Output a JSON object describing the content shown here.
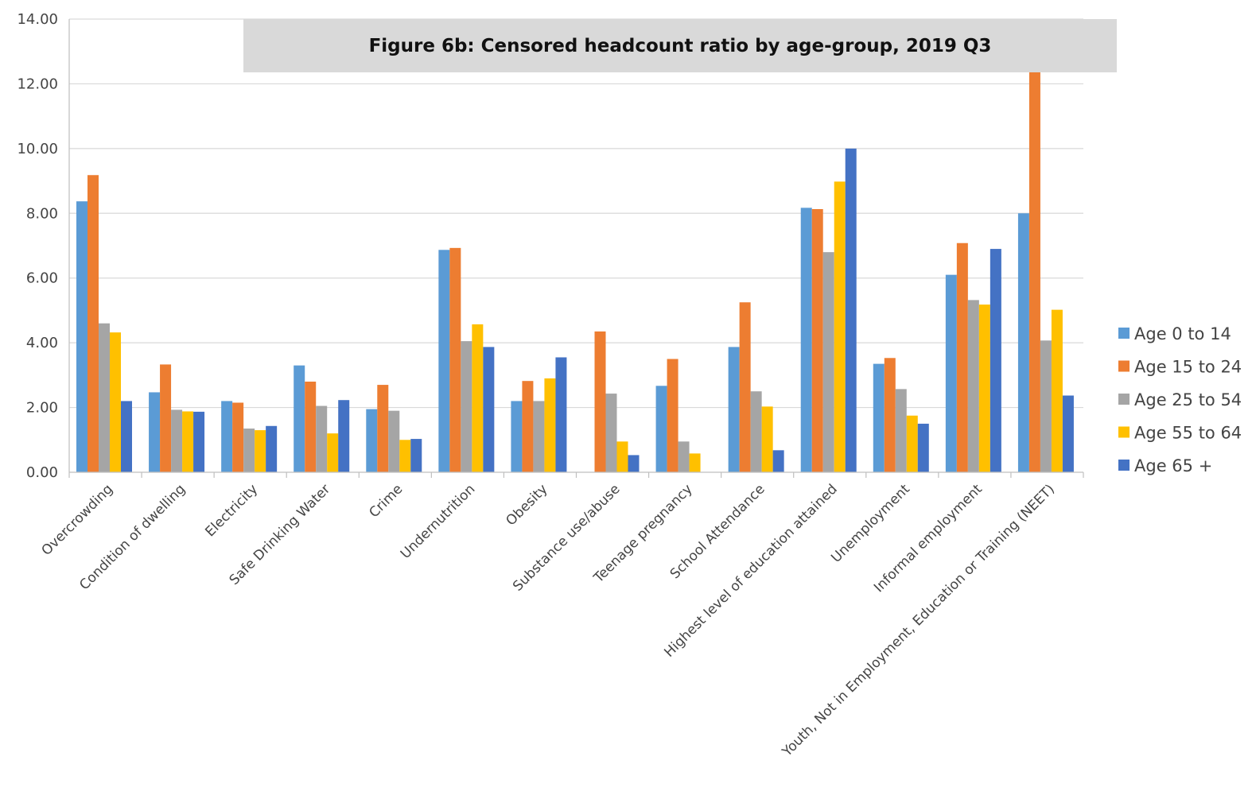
{
  "chart_data": {
    "type": "bar",
    "title": "Figure 6b: Censored headcount ratio by age-group, 2019 Q3",
    "xlabel": "",
    "ylabel": "",
    "ylim": [
      0,
      14
    ],
    "ytick_labels": [
      "0.00",
      "2.00",
      "4.00",
      "6.00",
      "8.00",
      "10.00",
      "12.00",
      "14.00"
    ],
    "grid": "horizontal",
    "legend_position": "right",
    "categories": [
      "Overcrowding",
      "Condition of dwelling",
      "Electricity",
      "Safe Drinking Water",
      "Crime",
      "Undernutrition",
      "Obesity",
      "Substance use/abuse",
      "Teenage pregnancy",
      "School Attendance",
      "Highest level of education attained",
      "Unemployment",
      "Informal employment",
      "Youth, Not in Employment, Education or Training (NEET)"
    ],
    "series": [
      {
        "name": "Age 0 to 14",
        "color": "#5B9BD5",
        "values": [
          8.37,
          2.47,
          2.2,
          3.3,
          1.95,
          6.87,
          2.2,
          0,
          2.67,
          3.87,
          8.17,
          3.35,
          6.1,
          8.0
        ]
      },
      {
        "name": "Age 15 to 24",
        "color": "#ED7D31",
        "values": [
          9.18,
          3.33,
          2.15,
          2.8,
          2.7,
          6.93,
          2.82,
          4.35,
          3.5,
          5.25,
          8.13,
          3.53,
          7.08,
          12.4
        ]
      },
      {
        "name": "Age 25 to 54",
        "color": "#A5A5A5",
        "values": [
          4.6,
          1.93,
          1.35,
          2.05,
          1.9,
          4.05,
          2.2,
          2.43,
          0.95,
          2.5,
          6.8,
          2.57,
          5.32,
          4.07
        ]
      },
      {
        "name": "Age 55  to 64",
        "color": "#FFC000",
        "values": [
          4.32,
          1.88,
          1.3,
          1.2,
          1.0,
          4.57,
          2.9,
          0.95,
          0.58,
          2.03,
          8.98,
          1.75,
          5.18,
          5.02
        ]
      },
      {
        "name": "Age 65 +",
        "color": "#4472C4",
        "values": [
          2.2,
          1.87,
          1.43,
          2.23,
          1.03,
          3.87,
          3.55,
          0.53,
          0,
          0.68,
          10.0,
          1.5,
          6.9,
          2.37
        ]
      }
    ]
  }
}
